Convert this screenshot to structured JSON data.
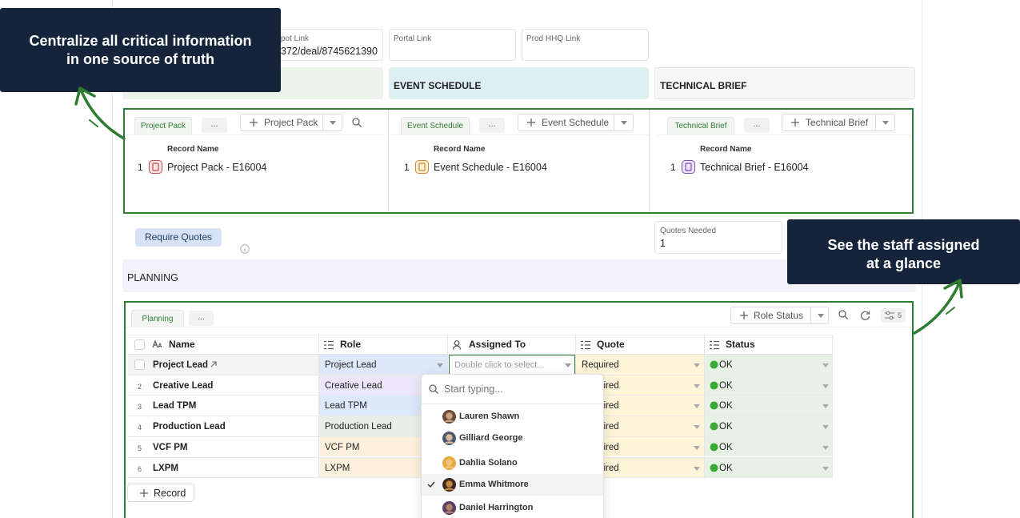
{
  "callouts": [
    {
      "lines": [
        "Centralize all critical information",
        "in one source of truth"
      ]
    },
    {
      "lines": [
        "See the staff assigned",
        "at a glance"
      ]
    }
  ],
  "fields": [
    {
      "label": "pot Link",
      "value": "372/deal/8745621390"
    },
    {
      "label": "Portal Link"
    },
    {
      "label": "Prod HHQ Link"
    }
  ],
  "sections": [
    "EVENT SCHEDULE",
    "TECHNICAL BRIEF"
  ],
  "linked_panels": [
    {
      "tab": "Project Pack",
      "more": "...",
      "button": "Project Pack",
      "column": "Record Name",
      "rows": [
        {
          "index": 1,
          "name": "Project Pack - E16004"
        }
      ]
    },
    {
      "tab": "Event Schedule",
      "more": "...",
      "button": "Event Schedule",
      "column": "Record Name",
      "rows": [
        {
          "index": 1,
          "name": "Event Schedule - E16004"
        }
      ]
    },
    {
      "tab": "Technical Brief",
      "more": "...",
      "button": "Technical Brief",
      "column": "Record Name",
      "rows": [
        {
          "index": 1,
          "name": "Technical Brief - E16004"
        }
      ]
    }
  ],
  "require_quotes": "Require Quotes",
  "quotes_needed": {
    "label": "Quotes Needed",
    "value": 1
  },
  "planning": {
    "title": "PLANNING",
    "tab": "Planning",
    "more": "...",
    "button": "Role Status",
    "filter_count": 5,
    "columns": [
      "Name",
      "Role",
      "Assigned To",
      "Quote",
      "Status"
    ],
    "rows": [
      {
        "name": "Project Lead",
        "role": "Project Lead",
        "assigned": "Double click to select...",
        "quote": "Required",
        "status": "OK"
      },
      {
        "index": 2,
        "name": "Creative Lead",
        "role": "Creative Lead",
        "quote": "Required",
        "status": "OK"
      },
      {
        "index": 3,
        "name": "Lead TPM",
        "role": "Lead TPM",
        "quote": "Required",
        "status": "OK"
      },
      {
        "index": 4,
        "name": "Production Lead",
        "role": "Production Lead",
        "quote": "Required",
        "status": "OK"
      },
      {
        "index": 5,
        "name": "VCF PM",
        "role": "VCF PM",
        "quote": "Required",
        "status": "OK"
      },
      {
        "index": 6,
        "name": "LXPM",
        "role": "LXPM",
        "quote": "Required",
        "status": "OK"
      }
    ],
    "add_record": "Record"
  },
  "dropdown": {
    "placeholder": "Start typing...",
    "options": [
      "Lauren Shawn",
      "Gilliard George",
      "Dahlia Solano",
      "Emma Whitmore",
      "Daniel Harrington"
    ],
    "selected": 3
  }
}
